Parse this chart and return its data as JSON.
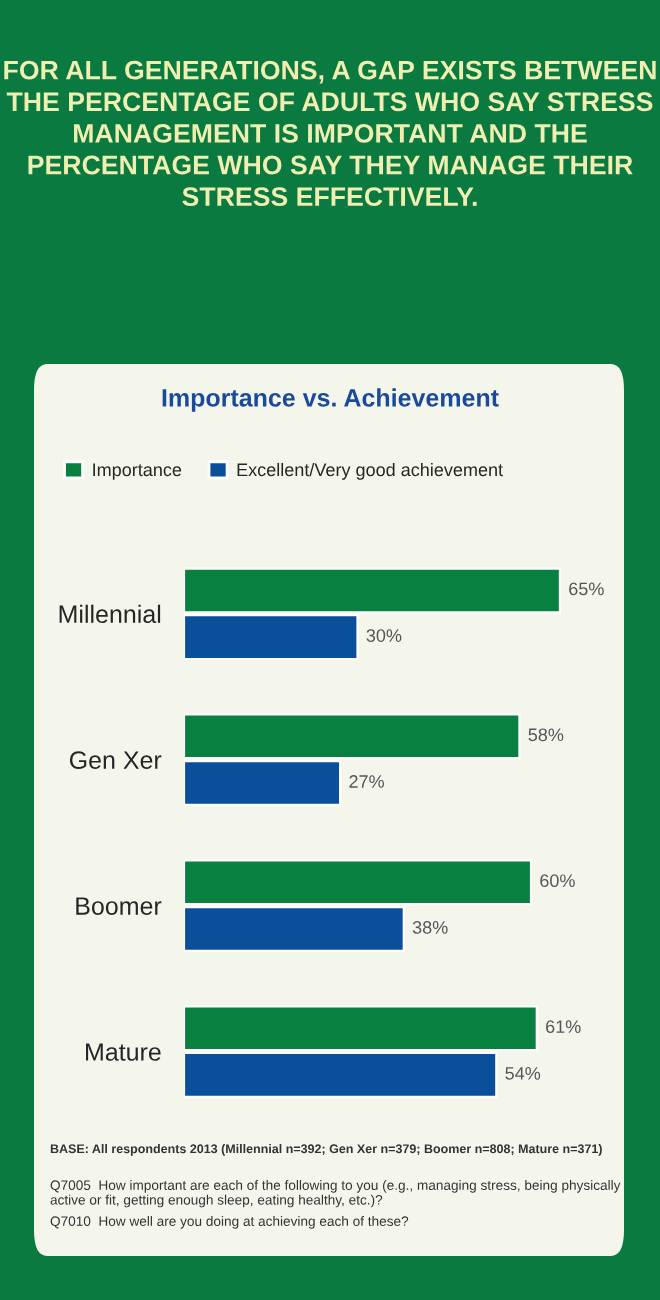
{
  "chart_data": {
    "type": "bar",
    "orientation": "horizontal",
    "title": "FOR ALL GENERATIONS, A GAP EXISTS BETWEEN THE PERCENTAGE OF ADULTS WHO SAY STRESS MANAGEMENT IS IMPORTANT AND THE PERCENTAGE WHO SAY THEY MANAGE THEIR STRESS EFFECTIVELY.",
    "subtitle": "Importance vs. Achievement",
    "categories": [
      "Millennial",
      "Gen Xer",
      "Boomer",
      "Mature"
    ],
    "series": [
      {
        "name": "Importance",
        "color": "#078040",
        "values": [
          65,
          58,
          60,
          61
        ],
        "value_labels": [
          "65%",
          "58%",
          "60%",
          "61%"
        ]
      },
      {
        "name": "Excellent/Very good achievement",
        "color": "#0a4f9a",
        "values": [
          30,
          27,
          38,
          54
        ],
        "value_labels": [
          "30%",
          "27%",
          "38%",
          "54%"
        ]
      }
    ],
    "legend": "top",
    "grid": false,
    "annotations": [
      "BASE: All respondents 2013 (Millennial n=392; Gen Xer n=379; Boomer n=808; Mature n=371)",
      "Q7005  How important are each of the following to you (e.g., managing stress, being physically active or fit, getting enough sleep, eating healthy, etc.)?",
      "Q7010  How well are you doing at achieving each of these?"
    ]
  }
}
